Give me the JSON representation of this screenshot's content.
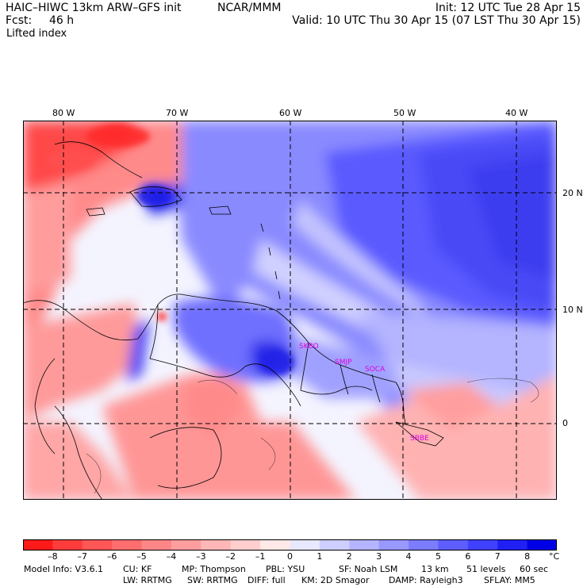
{
  "header": {
    "model_title": "HAIC–HIWC 13km ARW–GFS init",
    "org": "NCAR/MMM",
    "init": "Init: 12 UTC Tue 28 Apr 15",
    "fcst_label": "Fcst:",
    "fcst_value": "46 h",
    "valid": "Valid: 10 UTC Thu 30 Apr 15 (07 LST Thu 30 Apr 15)",
    "field_name": "Lifted index"
  },
  "map": {
    "lon_labels": [
      {
        "text": "80 W",
        "lon": -80
      },
      {
        "text": "70 W",
        "lon": -70
      },
      {
        "text": "60 W",
        "lon": -60
      },
      {
        "text": "50 W",
        "lon": -50
      },
      {
        "text": "40 W",
        "lon": -40
      }
    ],
    "lat_labels": [
      {
        "text": "20 N",
        "lat": 20
      },
      {
        "text": "10 N",
        "lat": 10
      },
      {
        "text": "0",
        "lat": 0
      }
    ],
    "stations": [
      "SKBO",
      "SMJP",
      "SOCA",
      "SBBE"
    ],
    "colors": {
      "negative_strong": "#ff0000",
      "negative_light": "#ffdada",
      "neutral": "#ffffff",
      "positive_light": "#dadaff",
      "positive_strong": "#0000e6",
      "station": "#dd00dd"
    }
  },
  "colorbar": {
    "labels": [
      "–8",
      "–7",
      "–6",
      "–5",
      "–4",
      "–3",
      "–2",
      "–1",
      "0",
      "1",
      "2",
      "3",
      "4",
      "5",
      "6",
      "7",
      "8"
    ],
    "unit": "°C",
    "colors": [
      "#ff1a1a",
      "#ff3c3c",
      "#ff5656",
      "#ff6e6e",
      "#ff8686",
      "#ff9e9e",
      "#ffb6b6",
      "#ffcece",
      "#ffe8e8",
      "#e8e8ff",
      "#ceceff",
      "#b4b4ff",
      "#9898ff",
      "#7c7cff",
      "#5e5eff",
      "#4040ff",
      "#2020f4",
      "#0000e6"
    ]
  },
  "footer": {
    "line1": [
      "Model Info: V3.6.1",
      "CU: KF",
      "MP: Thompson",
      "PBL: YSU",
      "SF: Noah LSM",
      "13 km",
      "51 levels",
      "60 sec"
    ],
    "line2": [
      "LW: RRTMG",
      "SW: RRTMG",
      "DIFF: full",
      "KM: 2D Smagor",
      "DAMP: Rayleigh3",
      "SFLAY: MM5"
    ]
  }
}
